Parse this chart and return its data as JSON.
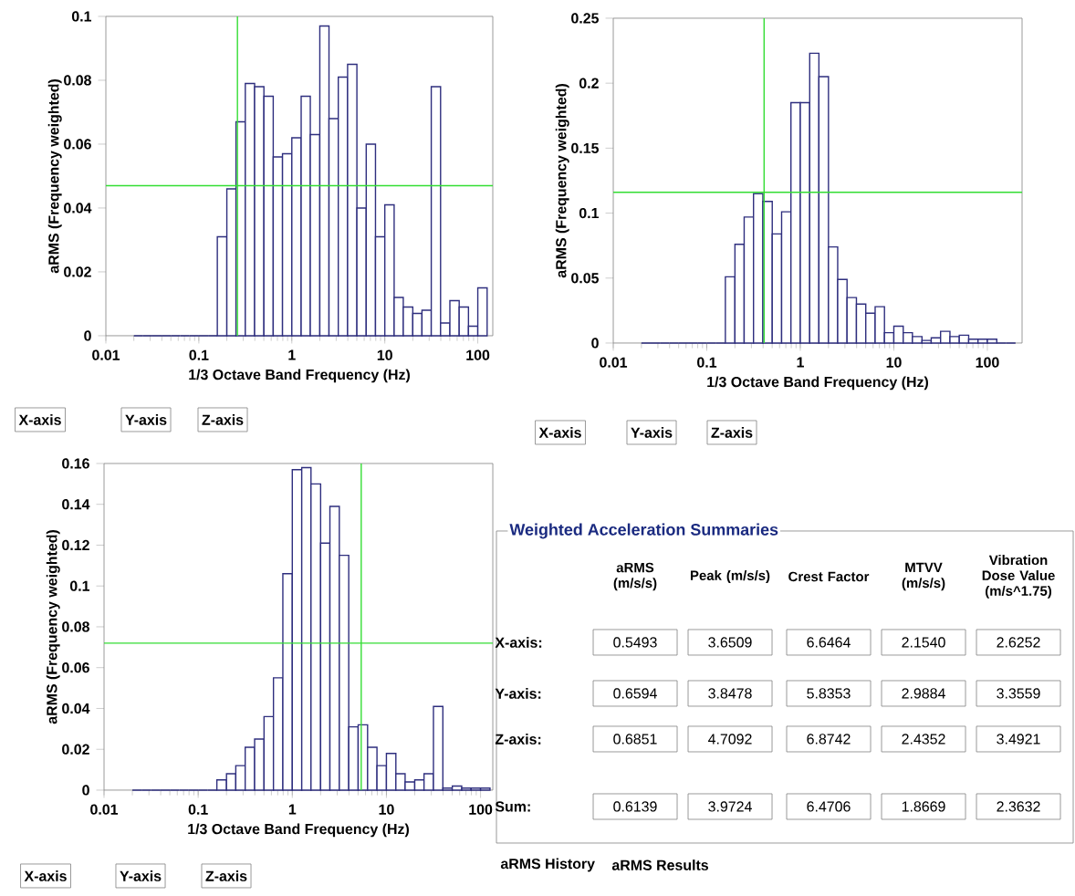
{
  "chart_data": [
    {
      "type": "histogram",
      "xlabel": "1/3 Octave Band Frequency (Hz)",
      "ylabel": "aRMS (Frequency weighted)",
      "log": "x",
      "color": "#2e2e7e",
      "bins": [
        0.02,
        0.0251,
        0.0316,
        0.0398,
        0.0501,
        0.0631,
        0.0794,
        0.1,
        0.126,
        0.158,
        0.2,
        0.251,
        0.316,
        0.398,
        0.501,
        0.631,
        0.794,
        1,
        1.26,
        1.58,
        2,
        2.51,
        3.16,
        3.98,
        5.01,
        6.31,
        7.94,
        10,
        12.6,
        15.8,
        20,
        25.1,
        31.6,
        39.8,
        50.1,
        63.1,
        79.4,
        100,
        126
      ],
      "values": [
        0,
        0,
        0,
        0,
        0,
        0,
        0,
        0,
        0,
        0.031,
        0.046,
        0.067,
        0.079,
        0.078,
        0.075,
        0.056,
        0.057,
        0.062,
        0.075,
        0.063,
        0.097,
        0.068,
        0.081,
        0.085,
        0.04,
        0.06,
        0.031,
        0.041,
        0.012,
        0.009,
        0.007,
        0.008,
        0.078,
        0.004,
        0.011,
        0.009,
        0.003,
        0.015
      ],
      "xlim": [
        0.01,
        145
      ],
      "xticks": [
        0.01,
        0.1,
        1,
        10,
        100
      ],
      "ylim": [
        0,
        0.1
      ],
      "yticks": [
        0,
        0.02,
        0.04,
        0.06,
        0.08,
        0.1
      ],
      "ref_lines": [
        {
          "axis": "x",
          "value": 0.26,
          "color": "#33dd33"
        },
        {
          "axis": "y",
          "value": 0.047,
          "color": "#33dd33"
        }
      ],
      "annotations": [
        "X-axis",
        "Y-axis",
        "Z-axis"
      ]
    },
    {
      "type": "histogram",
      "xlabel": "1/3 Octave Band Frequency (Hz)",
      "ylabel": "aRMS (Frequency weighted)",
      "log": "x",
      "color": "#2e2e7e",
      "bins": [
        0.02,
        0.0251,
        0.0316,
        0.0398,
        0.0501,
        0.0631,
        0.0794,
        0.1,
        0.126,
        0.158,
        0.2,
        0.251,
        0.316,
        0.398,
        0.501,
        0.631,
        0.794,
        1,
        1.26,
        1.58,
        2,
        2.51,
        3.16,
        3.98,
        5.01,
        6.31,
        7.94,
        10,
        12.6,
        15.8,
        20,
        25.1,
        31.6,
        39.8,
        50.1,
        63.1,
        79.4,
        100,
        126,
        158,
        200
      ],
      "values": [
        0,
        0,
        0,
        0,
        0,
        0,
        0,
        0,
        0,
        0.051,
        0.076,
        0.097,
        0.115,
        0.109,
        0.084,
        0.101,
        0.185,
        0.185,
        0.223,
        0.205,
        0.074,
        0.049,
        0.035,
        0.03,
        0.023,
        0.028,
        0.008,
        0.013,
        0.008,
        0.005,
        0.002,
        0.004,
        0.009,
        0.005,
        0.006,
        0.003,
        0.003,
        0.003,
        0,
        0
      ],
      "xlim": [
        0.01,
        235
      ],
      "xticks": [
        0.01,
        0.1,
        1,
        10,
        100
      ],
      "ylim": [
        0,
        0.25
      ],
      "yticks": [
        0,
        0.05,
        0.1,
        0.15,
        0.2,
        0.25
      ],
      "ref_lines": [
        {
          "axis": "x",
          "value": 0.41,
          "color": "#33dd33"
        },
        {
          "axis": "y",
          "value": 0.116,
          "color": "#33dd33"
        }
      ],
      "annotations": [
        "X-axis",
        "Y-axis",
        "Z-axis"
      ]
    },
    {
      "type": "histogram",
      "xlabel": "1/3 Octave Band Frequency (Hz)",
      "ylabel": "aRMS (Frequency weighted)",
      "log": "x",
      "color": "#2e2e7e",
      "bins": [
        0.02,
        0.0251,
        0.0316,
        0.0398,
        0.0501,
        0.0631,
        0.0794,
        0.1,
        0.126,
        0.158,
        0.2,
        0.251,
        0.316,
        0.398,
        0.501,
        0.631,
        0.794,
        1,
        1.26,
        1.58,
        2,
        2.51,
        3.16,
        3.98,
        5.01,
        6.31,
        7.94,
        10,
        12.6,
        15.8,
        20,
        25.1,
        31.6,
        39.8,
        50.1,
        63.1,
        79.4,
        100,
        126
      ],
      "values": [
        0,
        0,
        0,
        0,
        0,
        0,
        0,
        0,
        0,
        0.005,
        0.008,
        0.012,
        0.021,
        0.025,
        0.036,
        0.055,
        0.106,
        0.157,
        0.158,
        0.15,
        0.121,
        0.139,
        0.115,
        0.031,
        0.032,
        0.021,
        0.012,
        0.018,
        0.008,
        0.004,
        0.005,
        0.008,
        0.041,
        0.001,
        0.002,
        0.001,
        0.001,
        0.001
      ],
      "xlim": [
        0.01,
        135
      ],
      "xticks": [
        0.01,
        0.1,
        1,
        10,
        100
      ],
      "ylim": [
        0,
        0.16
      ],
      "yticks": [
        0,
        0.02,
        0.04,
        0.06,
        0.08,
        0.1,
        0.12,
        0.14,
        0.16
      ],
      "ref_lines": [
        {
          "axis": "x",
          "value": 5.4,
          "color": "#33dd33"
        },
        {
          "axis": "y",
          "value": 0.072,
          "color": "#33dd33"
        }
      ],
      "annotations": [
        "X-axis",
        "Y-axis",
        "Z-axis"
      ]
    },
    {
      "type": "other",
      "title": "Weighted Acceleration Summaries",
      "categories": [
        "aRMS (m/s/s)",
        "Peak (m/s/s)",
        "Crest Factor",
        "MTVV (m/s/s)",
        "Vibration Dose Value (m/s^1.75)"
      ],
      "y_categories": [
        "X-axis:",
        "Y-axis:",
        "Z-axis:",
        "Sum:"
      ],
      "cell_labels": [
        [
          "0.5493",
          "3.6509",
          "6.6464",
          "2.1540",
          "2.6252"
        ],
        [
          "0.6594",
          "3.8478",
          "5.8353",
          "2.9884",
          "3.3559"
        ],
        [
          "0.6851",
          "4.7092",
          "6.8742",
          "2.4352",
          "3.4921"
        ],
        [
          "0.6139",
          "3.9724",
          "6.4706",
          "1.8669",
          "2.3632"
        ]
      ],
      "annotations": [
        "aRMS History",
        "aRMS Results"
      ]
    }
  ]
}
